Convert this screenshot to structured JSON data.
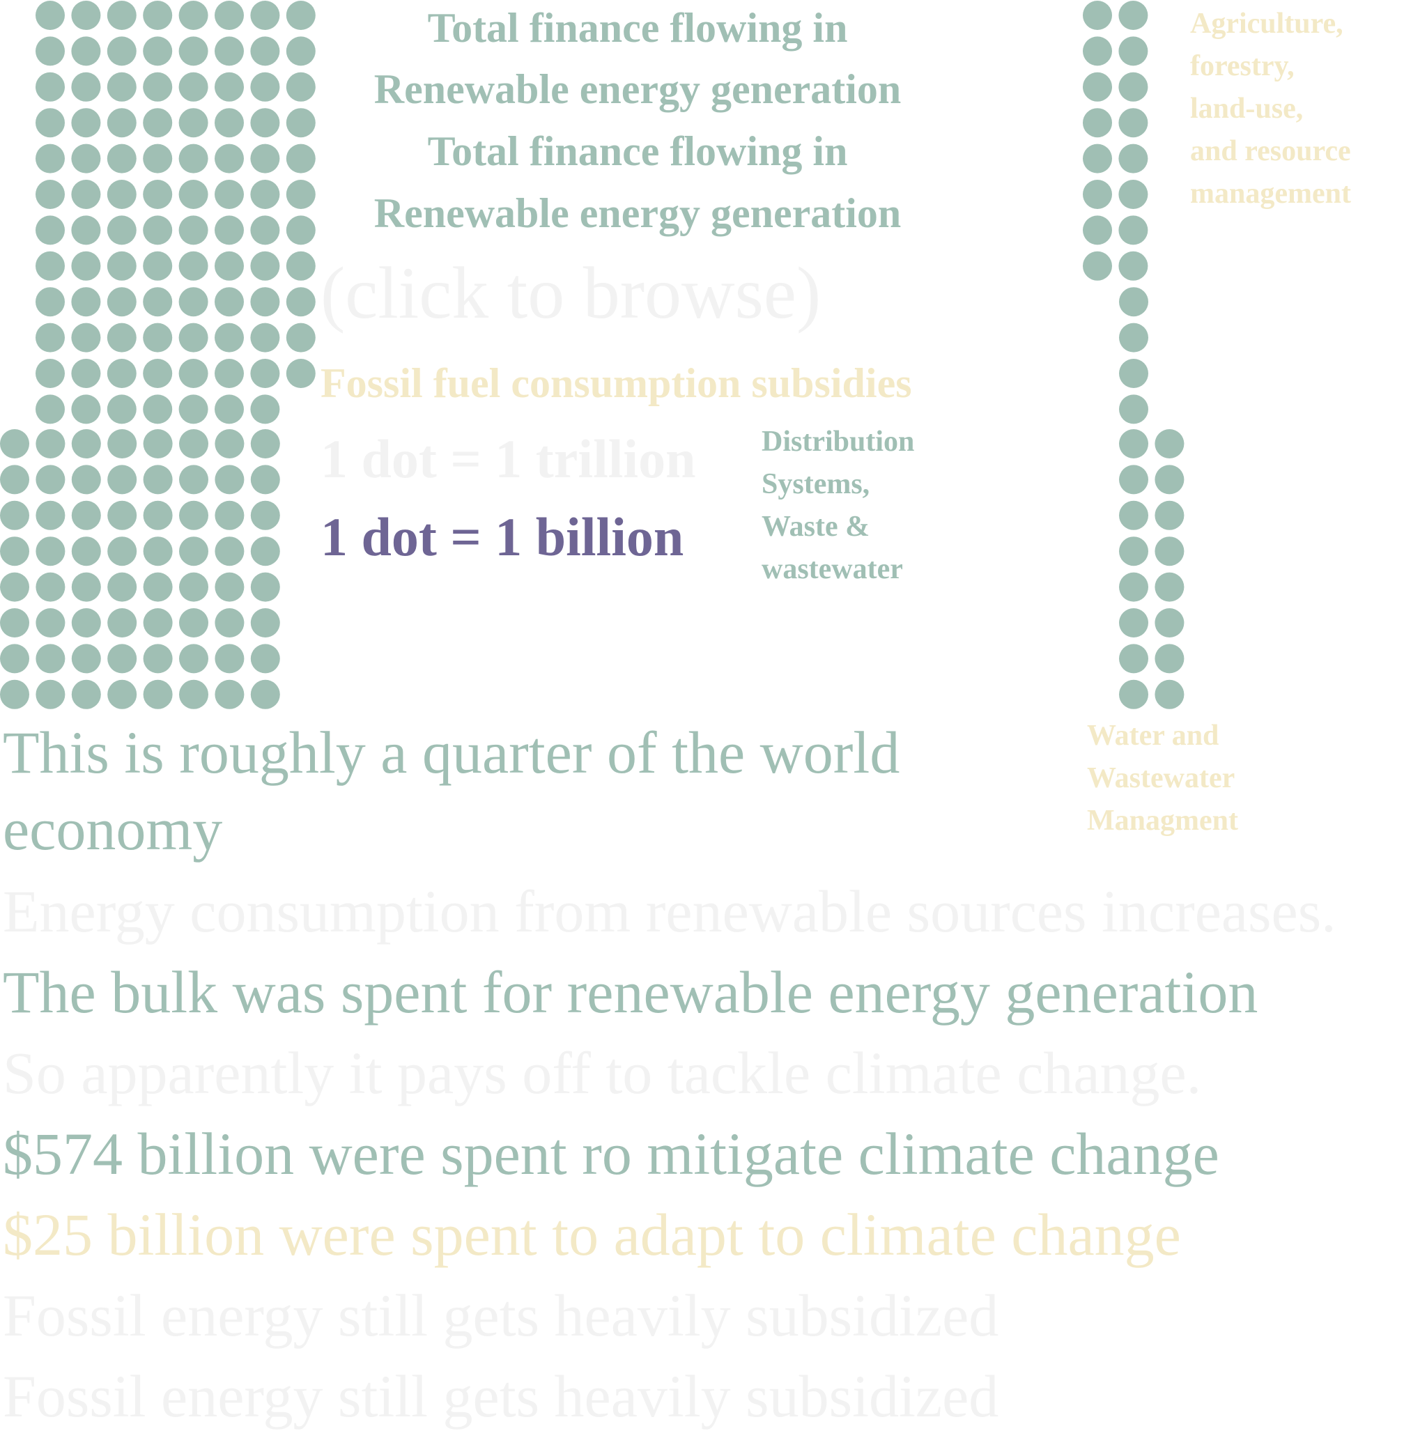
{
  "colors": {
    "green": "#a0bfb4",
    "yellow": "#f3e9c6",
    "purple": "#6e6594",
    "faint": "#f2f2f2"
  },
  "headings": {
    "total_finance_1": "Total finance flowing in",
    "renewable_1": "Renewable energy generation",
    "total_finance_2": "Total finance flowing in",
    "renewable_2": "Renewable energy generation",
    "click_to_browse": "(click to browse)",
    "fossil_subsidies": "Fossil fuel consumption subsidies",
    "dot_trillion": "1 dot = 1 trillion",
    "dot_billion": "1 dot = 1 billion"
  },
  "labels": {
    "distribution": [
      "Distribution",
      "Systems,",
      "Waste &",
      "wastewater"
    ],
    "agriculture": [
      "Agriculture,",
      "forestry,",
      "land-use,",
      "and resource",
      "management"
    ],
    "water": [
      "Water and",
      "Wastewater",
      "Managment"
    ]
  },
  "story": {
    "quarter_1": "This is roughly a quarter of the world",
    "quarter_2": "economy",
    "energy_consumption": "Energy consumption from renewable sources increases.",
    "bulk": "The bulk was spent for renewable energy generation",
    "pays_off": "So apparently it pays off to tackle climate change.",
    "mitigate": "$574 billion were spent ro mitigate climate change",
    "adapt": "$25 billion were spent to adapt to climate change",
    "fossil_1": "Fossil energy still gets heavily subsidized",
    "fossil_2": "Fossil energy still gets heavily subsidized"
  },
  "dot_groups": [
    {
      "name": "renewable",
      "dots": 186
    },
    {
      "name": "agriculture",
      "dots": 22
    },
    {
      "name": "water",
      "dots": 16
    }
  ]
}
